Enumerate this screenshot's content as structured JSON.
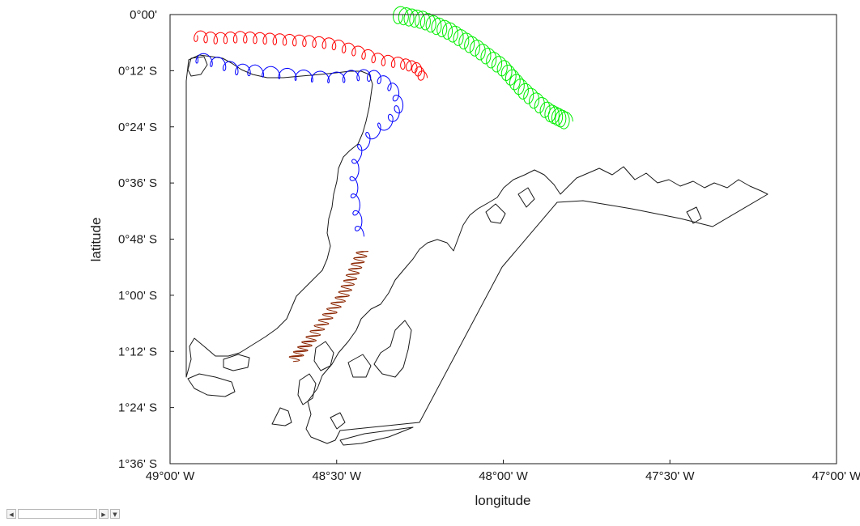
{
  "chart_data": {
    "type": "line",
    "title": "",
    "xlabel": "longitude",
    "ylabel": "latitude",
    "xlim": [
      -49.0,
      -47.0
    ],
    "ylim": [
      -1.6,
      0.0
    ],
    "x_ticks": [
      {
        "value": -49.0,
        "label": "49°00' W"
      },
      {
        "value": -48.5,
        "label": "48°30' W"
      },
      {
        "value": -48.0,
        "label": "48°00' W"
      },
      {
        "value": -47.5,
        "label": "47°30' W"
      },
      {
        "value": -47.0,
        "label": "47°00' W"
      }
    ],
    "y_ticks": [
      {
        "value": 0.0,
        "label": "0°00'"
      },
      {
        "value": -0.2,
        "label": "0°12' S"
      },
      {
        "value": -0.4,
        "label": "0°24' S"
      },
      {
        "value": -0.6,
        "label": "0°36' S"
      },
      {
        "value": -0.8,
        "label": "0°48' S"
      },
      {
        "value": -1.0,
        "label": "1°00' S"
      },
      {
        "value": -1.2,
        "label": "1°12' S"
      },
      {
        "value": -1.4,
        "label": "1°24' S"
      },
      {
        "value": -1.6,
        "label": "1°36' S"
      }
    ],
    "grid": false,
    "series": [
      {
        "color": "#ff0000",
        "kind": "looping-track",
        "x": [
          -48.93,
          -48.86,
          -48.79,
          -48.72,
          -48.65,
          -48.58,
          -48.51,
          -48.44,
          -48.37,
          -48.3,
          -48.26,
          -48.24
        ],
        "y": [
          -0.075,
          -0.085,
          -0.08,
          -0.085,
          -0.09,
          -0.095,
          -0.105,
          -0.13,
          -0.16,
          -0.175,
          -0.19,
          -0.225
        ]
      },
      {
        "color": "#0000ff",
        "kind": "looping-track",
        "x": [
          -48.93,
          -48.86,
          -48.8,
          -48.74,
          -48.66,
          -48.58,
          -48.5,
          -48.43,
          -48.38,
          -48.33,
          -48.31,
          -48.34,
          -48.4,
          -48.44,
          -48.45,
          -48.44,
          -48.43
        ],
        "y": [
          -0.15,
          -0.17,
          -0.195,
          -0.2,
          -0.21,
          -0.22,
          -0.225,
          -0.215,
          -0.22,
          -0.26,
          -0.33,
          -0.38,
          -0.43,
          -0.5,
          -0.6,
          -0.7,
          -0.79
        ]
      },
      {
        "color": "#00ee00",
        "kind": "looping-track",
        "x": [
          -48.32,
          -48.24,
          -48.16,
          -48.08,
          -48.0,
          -47.94,
          -47.86,
          -47.81
        ],
        "y": [
          0.0,
          -0.02,
          -0.06,
          -0.12,
          -0.19,
          -0.27,
          -0.35,
          -0.38
        ]
      },
      {
        "color": "#8b2500",
        "kind": "dense-track",
        "x": [
          -48.63,
          -48.58,
          -48.53,
          -48.48,
          -48.45,
          -48.42
        ],
        "y": [
          -1.23,
          -1.16,
          -1.08,
          -1.0,
          -0.92,
          -0.84
        ]
      }
    ]
  }
}
